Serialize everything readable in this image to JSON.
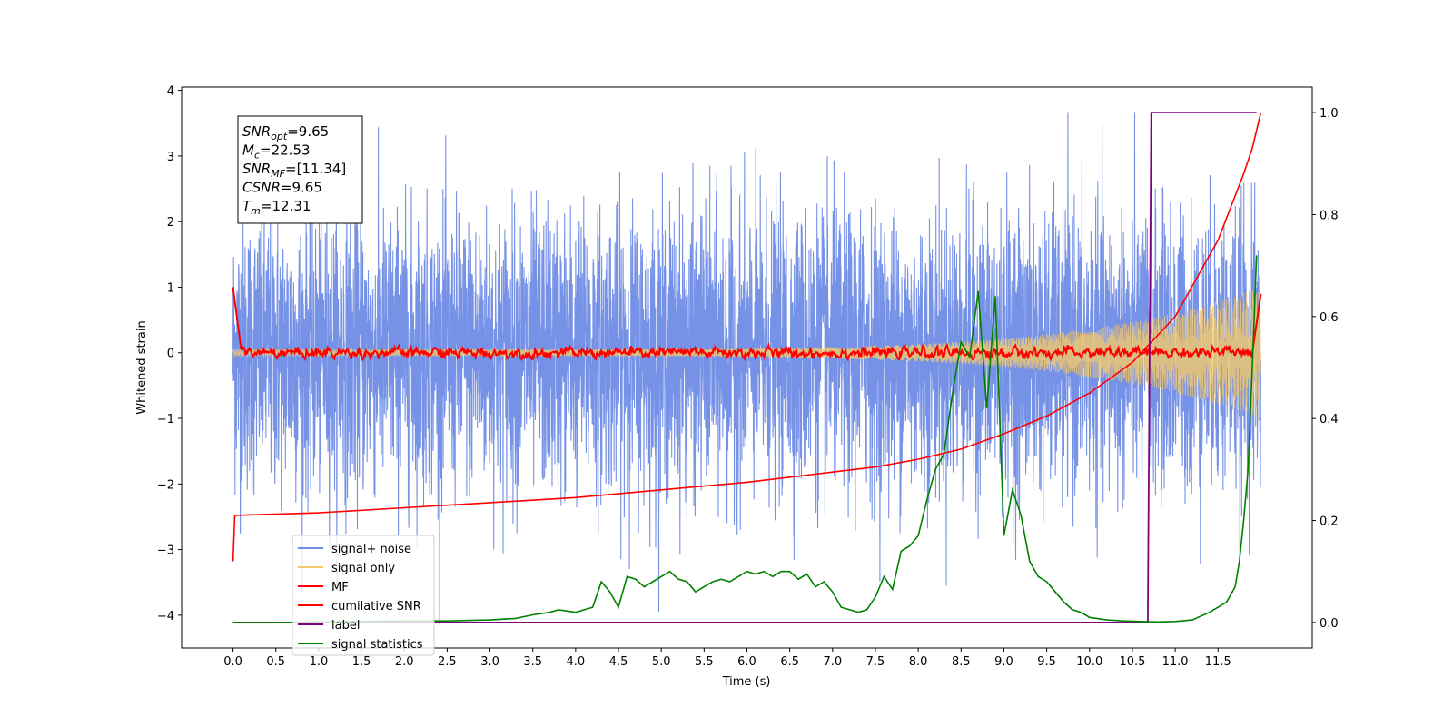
{
  "chart_data": {
    "type": "line",
    "title": "",
    "xlabel": "Time (s)",
    "ylabel": "Whitened strain",
    "y2label": "",
    "xlim": [
      -0.6,
      12.6
    ],
    "ylim": [
      -4.5,
      4.05
    ],
    "y2lim": [
      -0.05,
      1.05
    ],
    "x_ticks": [
      "0.0",
      "0.5",
      "1.0",
      "1.5",
      "2.0",
      "2.5",
      "3.0",
      "3.5",
      "4.0",
      "4.5",
      "5.0",
      "5.5",
      "6.0",
      "6.5",
      "7.0",
      "7.5",
      "8.0",
      "8.5",
      "9.0",
      "9.5",
      "10.0",
      "10.5",
      "11.0",
      "11.5"
    ],
    "y_ticks": [
      "4",
      "3",
      "2",
      "1",
      "0",
      "−1",
      "−2",
      "−3",
      "−4"
    ],
    "y2_ticks": [
      "1.0",
      "0.8",
      "0.6",
      "0.4",
      "0.2",
      "0.0"
    ],
    "grid": false,
    "legend_position": "lower-left",
    "annotation_box": {
      "lines": [
        {
          "base": "SNR",
          "sub": "opt",
          "rest": "=9.65"
        },
        {
          "base": "M",
          "sub": "c",
          "rest": "=22.53"
        },
        {
          "base": "SNR",
          "sub": "MF",
          "rest": "=[11.34]"
        },
        {
          "base": "CSNR",
          "sub": "",
          "rest": "=9.65"
        },
        {
          "base": "T",
          "sub": "m",
          "rest": "=12.31"
        }
      ]
    },
    "series": [
      {
        "name": "signal+ noise",
        "color": "#6f8ce6",
        "axis": "left",
        "kind": "noise_band",
        "x_range": [
          0.0,
          12.0
        ],
        "typical_envelope": [
          -2.0,
          2.0
        ],
        "peak_range": [
          -4.15,
          3.67
        ]
      },
      {
        "name": "signal only",
        "color": "#f5c96a",
        "axis": "left",
        "kind": "chirp",
        "x_range": [
          0.0,
          12.0
        ],
        "amplitude_start": 0.05,
        "amplitude_end": 1.0
      },
      {
        "name": "MF",
        "color": "#ff0000",
        "axis": "left",
        "kind": "matched_filter",
        "x_range": [
          0.0,
          12.0
        ],
        "start_value": 1.0,
        "baseline_range": [
          -0.1,
          0.25
        ],
        "end_value": 0.9
      },
      {
        "name": "cumilative SNR",
        "color": "#ff0000",
        "axis": "right",
        "x": [
          0.0,
          0.02,
          1.0,
          2.0,
          3.0,
          4.0,
          5.0,
          6.0,
          7.0,
          7.5,
          8.0,
          8.5,
          9.0,
          9.5,
          10.0,
          10.5,
          11.0,
          11.5,
          11.8,
          11.9,
          12.0
        ],
        "values": [
          0.12,
          0.21,
          0.215,
          0.225,
          0.235,
          0.245,
          0.26,
          0.275,
          0.295,
          0.305,
          0.32,
          0.34,
          0.37,
          0.405,
          0.45,
          0.51,
          0.6,
          0.75,
          0.88,
          0.93,
          1.0
        ]
      },
      {
        "name": "label",
        "color": "#800080",
        "axis": "right",
        "x": [
          0.0,
          10.68,
          10.72,
          11.95
        ],
        "values": [
          0.0,
          0.0,
          1.0,
          1.0
        ]
      },
      {
        "name": "signal statistics",
        "color": "#008000",
        "axis": "right",
        "x": [
          0.0,
          0.5,
          1.0,
          1.5,
          2.0,
          2.5,
          3.0,
          3.3,
          3.5,
          3.7,
          3.8,
          4.0,
          4.1,
          4.2,
          4.3,
          4.4,
          4.5,
          4.6,
          4.7,
          4.8,
          4.9,
          5.0,
          5.1,
          5.2,
          5.3,
          5.4,
          5.5,
          5.6,
          5.7,
          5.8,
          5.9,
          6.0,
          6.1,
          6.2,
          6.3,
          6.4,
          6.5,
          6.6,
          6.7,
          6.8,
          6.9,
          7.0,
          7.1,
          7.2,
          7.3,
          7.4,
          7.5,
          7.6,
          7.7,
          7.8,
          7.9,
          8.0,
          8.1,
          8.2,
          8.3,
          8.4,
          8.5,
          8.6,
          8.7,
          8.8,
          8.9,
          9.0,
          9.1,
          9.2,
          9.3,
          9.4,
          9.5,
          9.6,
          9.7,
          9.8,
          9.9,
          10.0,
          10.2,
          10.4,
          10.6,
          10.8,
          11.0,
          11.2,
          11.4,
          11.5,
          11.6,
          11.7,
          11.75,
          11.8,
          11.85,
          11.9,
          11.95
        ],
        "values": [
          0.0,
          0.0,
          0.001,
          0.002,
          0.003,
          0.003,
          0.005,
          0.008,
          0.015,
          0.02,
          0.025,
          0.02,
          0.025,
          0.03,
          0.08,
          0.06,
          0.03,
          0.09,
          0.085,
          0.07,
          0.08,
          0.09,
          0.1,
          0.085,
          0.08,
          0.06,
          0.07,
          0.08,
          0.085,
          0.08,
          0.09,
          0.1,
          0.095,
          0.1,
          0.09,
          0.1,
          0.1,
          0.085,
          0.095,
          0.07,
          0.08,
          0.06,
          0.03,
          0.025,
          0.02,
          0.025,
          0.05,
          0.09,
          0.065,
          0.14,
          0.15,
          0.17,
          0.24,
          0.3,
          0.33,
          0.45,
          0.55,
          0.52,
          0.65,
          0.42,
          0.64,
          0.17,
          0.26,
          0.21,
          0.12,
          0.09,
          0.08,
          0.06,
          0.04,
          0.025,
          0.02,
          0.01,
          0.005,
          0.003,
          0.002,
          0.001,
          0.002,
          0.005,
          0.02,
          0.03,
          0.04,
          0.07,
          0.12,
          0.2,
          0.3,
          0.5,
          0.72
        ]
      }
    ]
  }
}
